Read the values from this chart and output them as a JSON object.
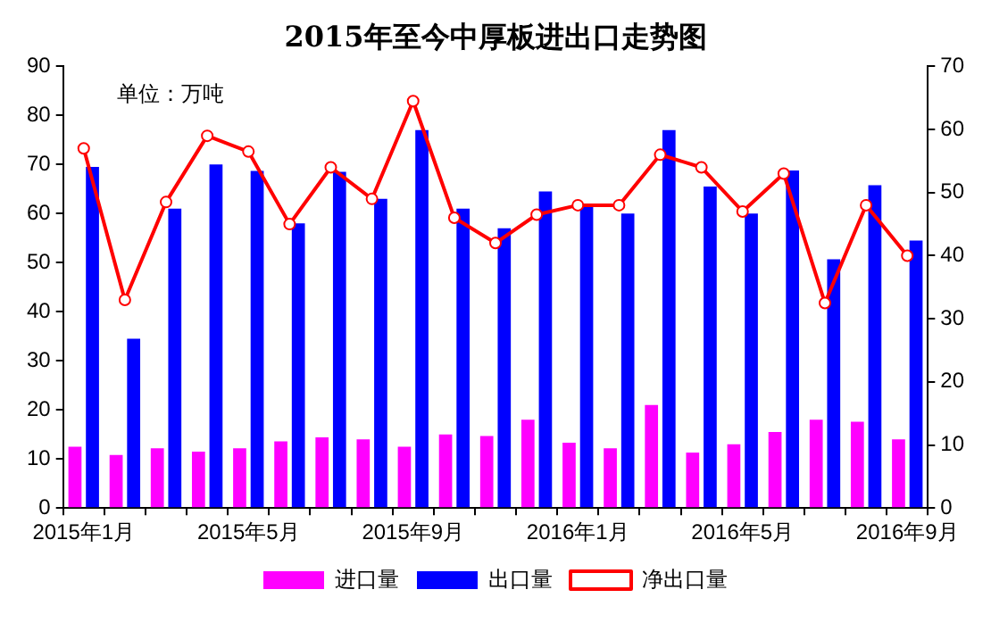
{
  "chart_data": {
    "type": "bar",
    "title": "2015年至今中厚板进出口走势图",
    "annotations": [
      "单位：万吨"
    ],
    "categories": [
      "2015年1月",
      null,
      null,
      null,
      "2015年5月",
      null,
      null,
      null,
      "2015年9月",
      null,
      null,
      null,
      "2016年1月",
      null,
      null,
      null,
      "2016年5月",
      null,
      null,
      null,
      "2016年9月"
    ],
    "series": [
      {
        "name": "进口量",
        "color": "#ff00ff",
        "values": [
          12.5,
          10.8,
          12.2,
          11.5,
          12.2,
          13.6,
          14.4,
          14.0,
          12.5,
          15.0,
          14.7,
          18.0,
          13.3,
          12.2,
          21.0,
          11.3,
          13.0,
          15.5,
          18.0,
          17.6,
          14.0
        ]
      },
      {
        "name": "出口量",
        "color": "#0000ff",
        "values": [
          69.5,
          34.5,
          61,
          70,
          68.7,
          58,
          68.5,
          63,
          77,
          61,
          57,
          64.5,
          61.5,
          60,
          77,
          65.5,
          60,
          68.8,
          50.7,
          65.8,
          54.5
        ]
      },
      {
        "name": "净出口量",
        "type": "line",
        "axis": "y2",
        "color": "#ff0000",
        "values": [
          57,
          33,
          48.5,
          59,
          56.5,
          45,
          54,
          49,
          64.5,
          46,
          42,
          46.5,
          48,
          48,
          56,
          54,
          47,
          53,
          32.5,
          48,
          40
        ]
      }
    ],
    "ylim": [
      0,
      90
    ],
    "yticks": [
      0,
      10,
      20,
      30,
      40,
      50,
      60,
      70,
      80,
      90
    ],
    "y2lim": [
      0,
      70
    ],
    "y2ticks": [
      0,
      10,
      20,
      30,
      40,
      50,
      60,
      70
    ],
    "grid": false,
    "legend": "bottom",
    "marker": "circle",
    "line_style": "solid"
  }
}
